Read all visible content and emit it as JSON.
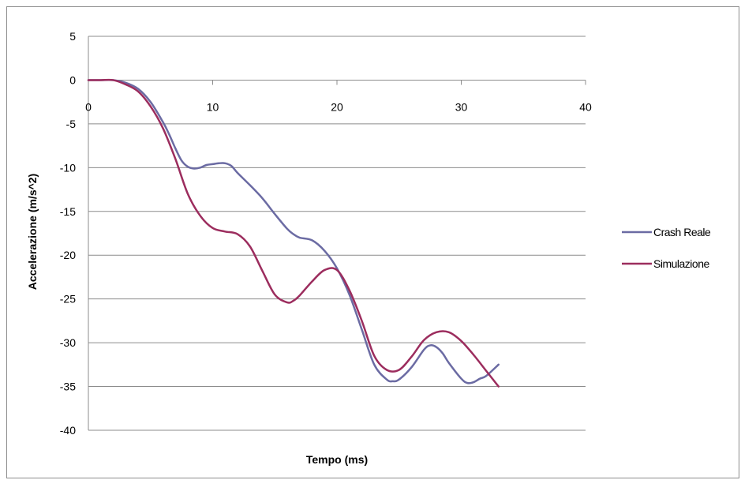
{
  "chart_data": {
    "type": "line",
    "title": "",
    "xlabel": "Tempo (ms)",
    "ylabel": "Accelerazione (m/s^2)",
    "xlim": [
      0,
      40
    ],
    "ylim": [
      -40,
      5
    ],
    "x_ticks": [
      0,
      10,
      20,
      30,
      40
    ],
    "y_ticks": [
      5,
      0,
      -5,
      -10,
      -15,
      -20,
      -25,
      -30,
      -35,
      -40
    ],
    "grid": "horizontal",
    "legend_position": "right",
    "series": [
      {
        "name": "Crash Reale",
        "color": "#6B6BA3",
        "x": [
          0,
          1,
          2,
          3,
          4,
          5,
          6,
          6.5,
          7,
          7.5,
          8,
          8.5,
          9,
          9.5,
          10,
          10.5,
          11,
          11.5,
          12,
          13,
          14,
          15,
          16,
          16.5,
          17,
          18,
          19,
          20,
          21,
          22,
          23,
          24,
          24.5,
          25,
          26,
          27,
          27.5,
          28,
          28.5,
          29,
          30,
          30.5,
          31,
          31.5,
          32,
          33
        ],
        "y": [
          0,
          0,
          0,
          -0.3,
          -1,
          -2.5,
          -4.8,
          -6.2,
          -7.8,
          -9.2,
          -9.9,
          -10.1,
          -10,
          -9.7,
          -9.6,
          -9.5,
          -9.5,
          -9.8,
          -10.6,
          -12,
          -13.5,
          -15.3,
          -17,
          -17.6,
          -18,
          -18.3,
          -19.5,
          -21.5,
          -24.5,
          -28.5,
          -32.5,
          -34.2,
          -34.4,
          -34.2,
          -32.8,
          -30.8,
          -30.3,
          -30.5,
          -31.2,
          -32.3,
          -34.1,
          -34.6,
          -34.5,
          -34.1,
          -33.8,
          -32.5
        ]
      },
      {
        "name": "Simulazione",
        "color": "#9C2D5E",
        "x": [
          0,
          1,
          2,
          3,
          4,
          5,
          6,
          7,
          8,
          9,
          10,
          11,
          12,
          13,
          14,
          15,
          16,
          16.5,
          17,
          18,
          19,
          20,
          21,
          22,
          23,
          24,
          25,
          26,
          27,
          28,
          29,
          30,
          31,
          32,
          33
        ],
        "y": [
          0,
          0,
          0,
          -0.5,
          -1.3,
          -3,
          -5.5,
          -9,
          -13,
          -15.5,
          -16.9,
          -17.3,
          -17.6,
          -19,
          -21.8,
          -24.5,
          -25.4,
          -25.2,
          -24.6,
          -23,
          -21.7,
          -21.7,
          -24,
          -27.5,
          -31.5,
          -33.1,
          -33.1,
          -31.6,
          -29.7,
          -28.8,
          -28.8,
          -29.8,
          -31.4,
          -33.2,
          -35
        ]
      }
    ]
  }
}
